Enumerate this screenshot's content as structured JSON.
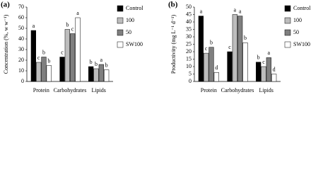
{
  "chart_data": [
    {
      "type": "bar",
      "panel_label": "(a)",
      "y_label": "Concentration (%, w w⁻¹)",
      "categories": [
        "Protein",
        "Carbohydrates",
        "Lipids"
      ],
      "ylim": [
        0,
        70
      ],
      "yticks": [
        0,
        10,
        20,
        30,
        40,
        50,
        60,
        70
      ],
      "series": [
        {
          "name": "Control",
          "color": "#000000",
          "values": [
            48,
            23,
            14
          ],
          "letters": [
            "a",
            "c",
            "b"
          ]
        },
        {
          "name": "100",
          "color": "#bdbdbd",
          "values": [
            18,
            49,
            12
          ],
          "letters": [
            "c",
            "b",
            "b"
          ]
        },
        {
          "name": "50",
          "color": "#7f7f7f",
          "values": [
            23,
            45,
            16
          ],
          "letters": [
            "b",
            "c",
            "a"
          ]
        },
        {
          "name": "SW100",
          "color": "#ffffff",
          "values": [
            15,
            60,
            11
          ],
          "letters": [
            "b",
            "a",
            "b"
          ]
        }
      ]
    },
    {
      "type": "bar",
      "panel_label": "(b)",
      "y_label": "Productivity (mg L⁻¹ d⁻¹)",
      "categories": [
        "Protein",
        "Carbohydrates",
        "Lipids"
      ],
      "ylim": [
        0,
        50
      ],
      "yticks": [
        0,
        5,
        10,
        15,
        20,
        25,
        30,
        35,
        40,
        45,
        50
      ],
      "series": [
        {
          "name": "Control",
          "color": "#000000",
          "values": [
            44,
            20,
            13
          ],
          "letters": [
            "a",
            "c",
            "b"
          ]
        },
        {
          "name": "100",
          "color": "#bdbdbd",
          "values": [
            19,
            45,
            10
          ],
          "letters": [
            "c",
            "a",
            "c"
          ]
        },
        {
          "name": "50",
          "color": "#7f7f7f",
          "values": [
            23,
            44,
            16
          ],
          "letters": [
            "b",
            "a",
            "a"
          ]
        },
        {
          "name": "SW100",
          "color": "#ffffff",
          "values": [
            6,
            26,
            5
          ],
          "letters": [
            "d",
            "b",
            "d"
          ]
        }
      ]
    }
  ]
}
